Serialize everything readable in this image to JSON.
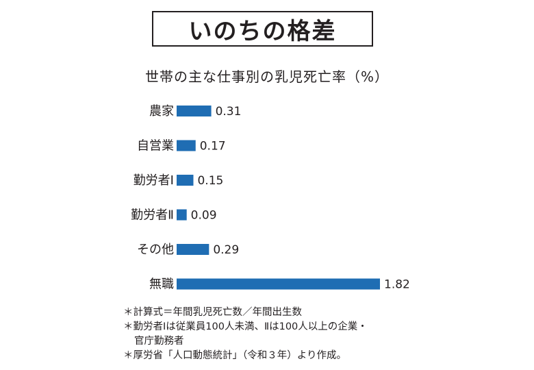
{
  "header": {
    "title": "いのちの格差",
    "subtitle": "世帯の主な仕事別の乳児死亡率（%）"
  },
  "chart_data": {
    "type": "bar",
    "orientation": "horizontal",
    "title": "世帯の主な仕事別の乳児死亡率（%）",
    "categories": [
      "農家",
      "自営業",
      "勤労者Ⅰ",
      "勤労者Ⅱ",
      "その他",
      "無職"
    ],
    "values": [
      0.31,
      0.17,
      0.15,
      0.09,
      0.29,
      1.82
    ],
    "value_labels": [
      "0.31",
      "0.17",
      "0.15",
      "0.09",
      "0.29",
      "1.82"
    ],
    "color": "#1f6db3",
    "grid": false,
    "legend": "none"
  },
  "notes": [
    "＊計算式＝年間乳児死亡数／年間出生数",
    "＊勤労者Ⅰは従業員100人未満、Ⅱは100人以上の企業・",
    "官庁勤務者",
    "＊厚労省「人口動態統計」（令和３年）より作成。"
  ]
}
